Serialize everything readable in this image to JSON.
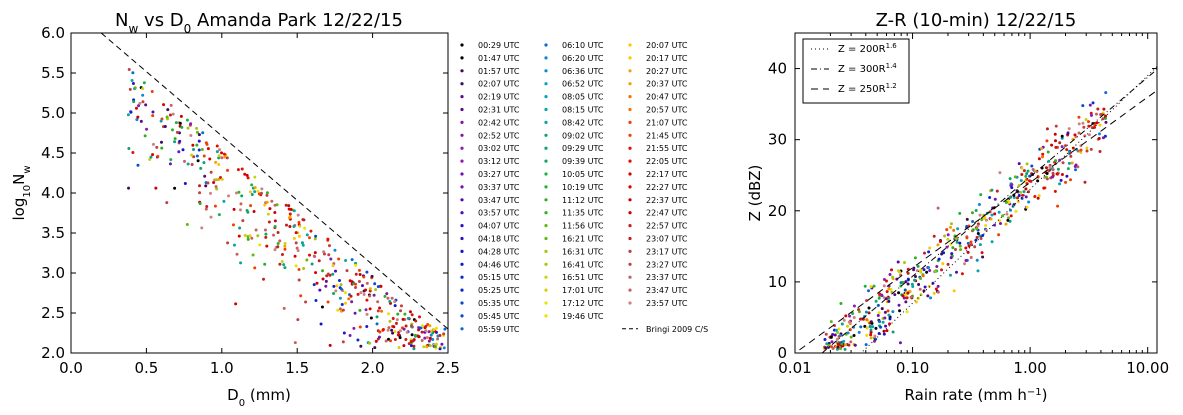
{
  "chart_data": [
    {
      "type": "scatter",
      "title": "N_w vs D_0 Amanda Park 12/22/15",
      "xlabel": "D0 (mm)",
      "ylabel": "log10Nw",
      "xlim": [
        0.0,
        2.5
      ],
      "ylim": [
        2.0,
        6.0
      ],
      "xticks": [
        "0.0",
        "0.5",
        "1.0",
        "1.5",
        "2.0",
        "2.5"
      ],
      "yticks": [
        "2.0",
        "2.5",
        "3.0",
        "3.5",
        "4.0",
        "4.5",
        "5.0",
        "5.5",
        "6.0"
      ],
      "reference_line": {
        "name": "Bringi 2009 C/S",
        "x": [
          0.2,
          2.5
        ],
        "y": [
          6.0,
          2.3
        ]
      },
      "series_cluster_note": "",
      "legend_entries": [
        "00:29 UTC",
        "01:47 UTC",
        "01:57 UTC",
        "02:07 UTC",
        "02:19 UTC",
        "02:31 UTC",
        "02:42 UTC",
        "02:52 UTC",
        "03:02 UTC",
        "03:12 UTC",
        "03:27 UTC",
        "03:37 UTC",
        "03:47 UTC",
        "03:57 UTC",
        "04:07 UTC",
        "04:18 UTC",
        "04:28 UTC",
        "04:46 UTC",
        "05:15 UTC",
        "05:25 UTC",
        "05:35 UTC",
        "05:45 UTC",
        "05:59 UTC",
        "06:10 UTC",
        "06:20 UTC",
        "06:36 UTC",
        "06:52 UTC",
        "08:05 UTC",
        "08:15 UTC",
        "08:42 UTC",
        "09:02 UTC",
        "09:29 UTC",
        "09:39 UTC",
        "10:05 UTC",
        "10:19 UTC",
        "11:12 UTC",
        "11:35 UTC",
        "11:56 UTC",
        "16:21 UTC",
        "16:31 UTC",
        "16:41 UTC",
        "16:51 UTC",
        "17:01 UTC",
        "17:12 UTC",
        "19:46 UTC",
        "20:07 UTC",
        "20:17 UTC",
        "20:27 UTC",
        "20:37 UTC",
        "20:47 UTC",
        "20:57 UTC",
        "21:07 UTC",
        "21:45 UTC",
        "21:55 UTC",
        "22:05 UTC",
        "22:17 UTC",
        "22:27 UTC",
        "22:37 UTC",
        "22:47 UTC",
        "22:57 UTC",
        "23:07 UTC",
        "23:17 UTC",
        "23:27 UTC",
        "23:37 UTC",
        "23:47 UTC",
        "23:57 UTC",
        "Bringi 2009 C/S"
      ]
    },
    {
      "type": "scatter",
      "title": "Z-R (10-min) 12/22/15",
      "xlabel": "Rain rate (mm h⁻¹)",
      "ylabel": "Z (dBZ)",
      "xscale": "log",
      "xlim": [
        0.01,
        12.0
      ],
      "ylim": [
        0,
        45
      ],
      "xticks": [
        "0.01",
        "0.10",
        "1.00",
        "10.00"
      ],
      "yticks": [
        "0",
        "10",
        "20",
        "30",
        "40"
      ],
      "legend_position": "upper-left",
      "lines": [
        {
          "name": "Z = 200R^1.6",
          "a": 200,
          "b": 1.6,
          "style": "dotted"
        },
        {
          "name": "Z = 300R^1.4",
          "a": 300,
          "b": 1.4,
          "style": "dashdot"
        },
        {
          "name": "Z = 250R^1.2",
          "a": 250,
          "b": 1.2,
          "style": "dashed"
        }
      ]
    }
  ],
  "colors": {
    "palette": [
      "#000000",
      "#3d0a5c",
      "#5b0b8a",
      "#7a1aa8",
      "#8e1bb0",
      "#6e12b8",
      "#4a0db8",
      "#2e10c0",
      "#1515c8",
      "#0a2ad0",
      "#0a4ad0",
      "#0a6ad0",
      "#0a8ad0",
      "#0aa0c0",
      "#0aa5a0",
      "#0aa080",
      "#10a860",
      "#20b040",
      "#30b020",
      "#60b810",
      "#a0c810",
      "#d0d010",
      "#f0e000",
      "#f8c800",
      "#f8a000",
      "#f87000",
      "#f04000",
      "#e01000",
      "#d80000",
      "#c80000",
      "#c02020",
      "#c04040",
      "#c86060",
      "#d08080"
    ],
    "black": "#000000"
  }
}
